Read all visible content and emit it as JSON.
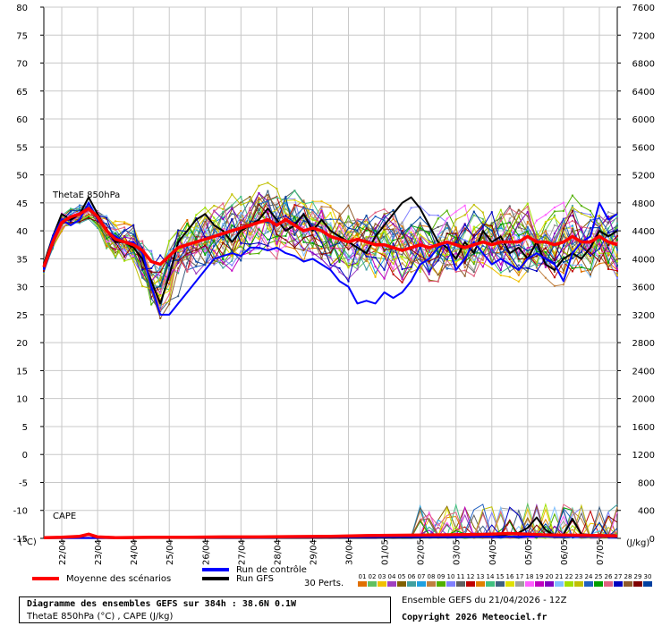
{
  "chart_data": {
    "type": "line",
    "title": "Diagramme des ensembles GEFS sur 384h : 38.6N 0.1W",
    "subtitle": "ThetaE 850hPa (°C) , CAPE (J/kg)",
    "run_info": "Ensemble GEFS du 21/04/2026 - 12Z",
    "copyright": "Copyright 2026 Meteociel.fr",
    "left_axis": {
      "unit": "(°C)",
      "ticks": [
        80,
        75,
        70,
        65,
        60,
        55,
        50,
        45,
        40,
        35,
        30,
        25,
        20,
        15,
        10,
        5,
        0,
        -5,
        -10,
        -15
      ],
      "range": [
        -15,
        80
      ]
    },
    "right_axis": {
      "unit": "(J/kg)",
      "ticks": [
        7600,
        7200,
        6800,
        6400,
        6000,
        5600,
        5200,
        4800,
        4400,
        4000,
        3600,
        3200,
        2800,
        2400,
        2000,
        1600,
        1200,
        800,
        400,
        0
      ],
      "range": [
        0,
        7600
      ]
    },
    "x_ticks": [
      "22/04",
      "23/04",
      "24/04",
      "25/04",
      "26/04",
      "27/04",
      "28/04",
      "29/04",
      "30/04",
      "01/05",
      "02/05",
      "03/05",
      "04/05",
      "05/05",
      "06/05",
      "07/05"
    ],
    "x_range_hours": [
      0,
      384
    ],
    "panel_labels": {
      "thetae": "ThetaE 850hPa",
      "cape": "CAPE"
    },
    "legend": {
      "mean": "Moyenne des scénarios",
      "control": "Run de contrôle",
      "gfs": "Run GFS",
      "perts": "30 Perts."
    },
    "pert_labels": [
      "01",
      "02",
      "03",
      "04",
      "05",
      "06",
      "07",
      "08",
      "09",
      "10",
      "11",
      "12",
      "13",
      "14",
      "15",
      "16",
      "17",
      "18",
      "19",
      "20",
      "21",
      "22",
      "23",
      "24",
      "25",
      "26",
      "27",
      "28",
      "29",
      "30"
    ],
    "pert_colors": [
      "#e07000",
      "#60c060",
      "#f0c000",
      "#a040c0",
      "#806000",
      "#40a0a0",
      "#20a0e0",
      "#c08040",
      "#50b000",
      "#8080ff",
      "#606060",
      "#c00000",
      "#e08000",
      "#40c080",
      "#406080",
      "#e0e000",
      "#a0a0a0",
      "#ff60ff",
      "#c000c0",
      "#8000c0",
      "#80c0ff",
      "#a0e000",
      "#c0c000",
      "#2060c0",
      "#00a000",
      "#e06080",
      "#0000c0",
      "#8f5a2a",
      "#800000",
      "#0040a0"
    ],
    "mean_color": "#ff0000",
    "control_color": "#0000ff",
    "gfs_color": "#000000",
    "series": [
      {
        "name": "Moyenne des scénarios",
        "thetae_x": [
          0,
          6,
          12,
          18,
          24,
          30,
          36,
          42,
          48,
          54,
          60,
          66,
          72,
          78,
          84,
          90,
          96,
          102,
          108,
          114,
          120,
          126,
          132,
          138,
          144,
          150,
          156,
          162,
          168,
          174,
          180,
          186,
          192,
          198,
          204,
          210,
          216,
          222,
          228,
          234,
          240,
          246,
          252,
          258,
          264,
          270,
          276,
          282,
          288,
          294,
          300,
          306,
          312,
          318,
          324,
          330,
          336,
          342,
          348,
          354,
          360,
          366,
          372,
          378,
          384
        ],
        "thetae_y": [
          33.5,
          38,
          41.5,
          42.5,
          43,
          44,
          42.5,
          40,
          38.5,
          38,
          37.5,
          36.5,
          34.5,
          34,
          35.5,
          37,
          37.5,
          38,
          38.5,
          39,
          39.5,
          40,
          40.5,
          41,
          41.5,
          42,
          41,
          42,
          41,
          40,
          40.5,
          40,
          39,
          38.5,
          38,
          38.5,
          38,
          37.5,
          37.5,
          37,
          36.5,
          37,
          37.5,
          37,
          37.5,
          38,
          37.5,
          37,
          37.5,
          38,
          37.5,
          38,
          38,
          38,
          39,
          38,
          38,
          37.5,
          38,
          39,
          38,
          38,
          39,
          38,
          37.5
        ],
        "cape_x": [
          0,
          12,
          24,
          30,
          36,
          48,
          72,
          96,
          120,
          144,
          168,
          192,
          216,
          240,
          264,
          288,
          300,
          312,
          336,
          360,
          372,
          384
        ],
        "cape_y": [
          10,
          15,
          30,
          60,
          20,
          10,
          15,
          15,
          20,
          20,
          25,
          30,
          40,
          45,
          50,
          55,
          60,
          70,
          50,
          45,
          40,
          35
        ]
      },
      {
        "name": "Run de contrôle",
        "thetae_x": [
          0,
          6,
          12,
          18,
          24,
          30,
          36,
          42,
          48,
          54,
          60,
          66,
          72,
          78,
          84,
          90,
          96,
          102,
          108,
          114,
          120,
          126,
          132,
          138,
          144,
          150,
          156,
          162,
          168,
          174,
          180,
          186,
          192,
          198,
          204,
          210,
          216,
          222,
          228,
          234,
          240,
          246,
          252,
          258,
          264,
          270,
          276,
          282,
          288,
          294,
          300,
          306,
          312,
          318,
          324,
          330,
          336,
          342,
          348,
          354,
          360,
          366,
          372,
          378,
          384
        ],
        "thetae_y": [
          33,
          39,
          42,
          41,
          42,
          45,
          42,
          40,
          39,
          38,
          38,
          36,
          30,
          25,
          25,
          27,
          29,
          31,
          33,
          35,
          35.5,
          36,
          35.5,
          37,
          37,
          36.5,
          37,
          36,
          35.5,
          34.5,
          35,
          34,
          33,
          31,
          30,
          27,
          27.5,
          27,
          29,
          28,
          29,
          31,
          34,
          35,
          37,
          38,
          33,
          35,
          38,
          36,
          34,
          35,
          34,
          33,
          35,
          36,
          35,
          34,
          31,
          36,
          38,
          39,
          45,
          42,
          43
        ],
        "cape_x": [
          0,
          48,
          96,
          144,
          192,
          240,
          288,
          336,
          384
        ],
        "cape_y": [
          5,
          5,
          10,
          10,
          15,
          20,
          20,
          25,
          25
        ]
      },
      {
        "name": "Run GFS",
        "thetae_x": [
          0,
          6,
          12,
          18,
          24,
          30,
          36,
          42,
          48,
          54,
          60,
          66,
          72,
          78,
          84,
          90,
          96,
          102,
          108,
          114,
          120,
          126,
          132,
          138,
          144,
          150,
          156,
          162,
          168,
          174,
          180,
          186,
          192,
          198,
          204,
          210,
          216,
          222,
          228,
          234,
          240,
          246,
          252,
          258,
          264,
          270,
          276,
          282,
          288,
          294,
          300,
          306,
          312,
          318,
          324,
          330,
          336,
          342,
          348,
          354,
          360,
          366,
          372,
          378,
          384
        ],
        "thetae_y": [
          34,
          39,
          43,
          42,
          43,
          46,
          43,
          40,
          38,
          38,
          37,
          35,
          31,
          27,
          32,
          38,
          40,
          42,
          43,
          41,
          40,
          38,
          40,
          41,
          42,
          44,
          42,
          40,
          41,
          43,
          40,
          42,
          40,
          39,
          38,
          37,
          36,
          39,
          41,
          43,
          45,
          46,
          44,
          41,
          38,
          37,
          35,
          38,
          36,
          40,
          38,
          39,
          36,
          37,
          35,
          38,
          34,
          33,
          35,
          36,
          35,
          37,
          40,
          39,
          40
        ],
        "cape_x": [
          0,
          120,
          240,
          300,
          318,
          324,
          330,
          336,
          342,
          348,
          354,
          360,
          384
        ],
        "cape_y": [
          5,
          5,
          10,
          20,
          80,
          150,
          300,
          120,
          40,
          60,
          280,
          60,
          20
        ]
      }
    ]
  }
}
